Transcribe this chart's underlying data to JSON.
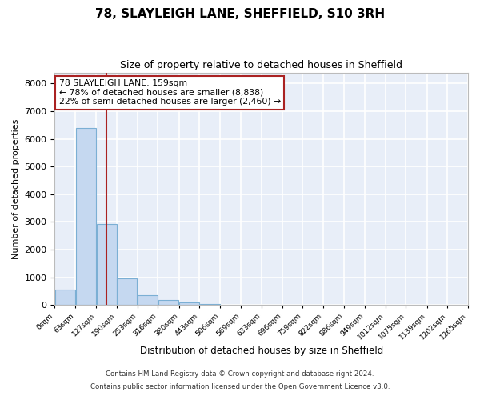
{
  "title": "78, SLAYLEIGH LANE, SHEFFIELD, S10 3RH",
  "subtitle": "Size of property relative to detached houses in Sheffield",
  "xlabel": "Distribution of detached houses by size in Sheffield",
  "ylabel": "Number of detached properties",
  "bar_color": "#c5d8f0",
  "bar_edge_color": "#7bafd4",
  "plot_bg_color": "#e8eef8",
  "fig_bg_color": "#ffffff",
  "grid_color": "#ffffff",
  "bin_edges": [
    0,
    63,
    127,
    190,
    253,
    316,
    380,
    443,
    506,
    569,
    633,
    696,
    759,
    822,
    886,
    949,
    1012,
    1075,
    1139,
    1202,
    1265
  ],
  "bin_labels": [
    "0sqm",
    "63sqm",
    "127sqm",
    "190sqm",
    "253sqm",
    "316sqm",
    "380sqm",
    "443sqm",
    "506sqm",
    "569sqm",
    "633sqm",
    "696sqm",
    "759sqm",
    "822sqm",
    "886sqm",
    "949sqm",
    "1012sqm",
    "1075sqm",
    "1139sqm",
    "1202sqm",
    "1265sqm"
  ],
  "bar_heights": [
    560,
    6400,
    2920,
    975,
    360,
    170,
    90,
    45,
    0,
    0,
    0,
    0,
    0,
    0,
    0,
    0,
    0,
    0,
    0,
    0
  ],
  "vline_x": 159,
  "vline_color": "#aa2222",
  "annotation_line1": "78 SLAYLEIGH LANE: 159sqm",
  "annotation_line2": "← 78% of detached houses are smaller (8,838)",
  "annotation_line3": "22% of semi-detached houses are larger (2,460) →",
  "annotation_box_color": "#ffffff",
  "annotation_border_color": "#aa2222",
  "ylim": [
    0,
    8400
  ],
  "yticks": [
    0,
    1000,
    2000,
    3000,
    4000,
    5000,
    6000,
    7000,
    8000
  ],
  "footer_line1": "Contains HM Land Registry data © Crown copyright and database right 2024.",
  "footer_line2": "Contains public sector information licensed under the Open Government Licence v3.0."
}
